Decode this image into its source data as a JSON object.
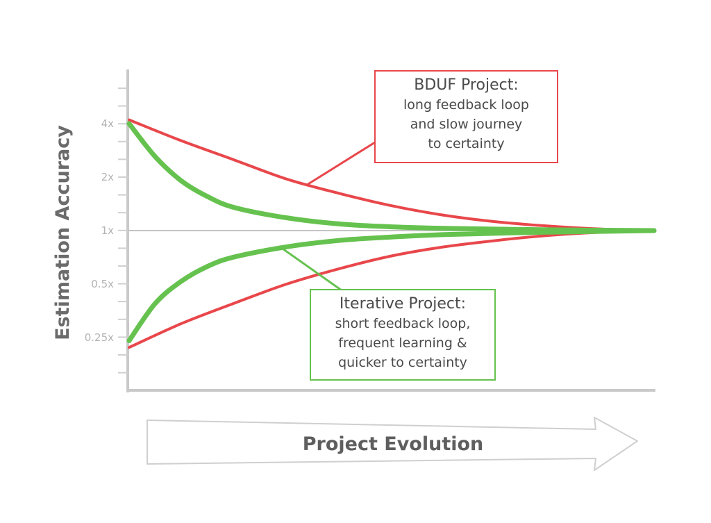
{
  "chart_data": {
    "type": "line",
    "y_axis_label": "Estimation Accuracy",
    "x_axis_label": "Project Evolution",
    "y_scale": "log2",
    "y_ticks": [
      "4x",
      "2x",
      "1x",
      "0.5x",
      "0.25x"
    ],
    "y_tick_values": [
      4,
      2,
      1,
      0.5,
      0.25
    ],
    "x_range": [
      0,
      1
    ],
    "reference_line_y": 1,
    "series": [
      {
        "group": "bduf",
        "color": "#e8474b",
        "points": [
          [
            0,
            4.2
          ],
          [
            0.1,
            3.2
          ],
          [
            0.2,
            2.5
          ],
          [
            0.3,
            1.95
          ],
          [
            0.4,
            1.62
          ],
          [
            0.5,
            1.38
          ],
          [
            0.6,
            1.22
          ],
          [
            0.7,
            1.12
          ],
          [
            0.8,
            1.06
          ],
          [
            0.9,
            1.02
          ],
          [
            1.0,
            1.0
          ]
        ]
      },
      {
        "group": "bduf",
        "color": "#e8474b",
        "points": [
          [
            0,
            0.22
          ],
          [
            0.1,
            0.3
          ],
          [
            0.2,
            0.39
          ],
          [
            0.3,
            0.5
          ],
          [
            0.4,
            0.61
          ],
          [
            0.5,
            0.72
          ],
          [
            0.6,
            0.81
          ],
          [
            0.7,
            0.88
          ],
          [
            0.8,
            0.94
          ],
          [
            0.9,
            0.98
          ],
          [
            1.0,
            1.0
          ]
        ]
      },
      {
        "group": "iterative",
        "color": "#66c24f",
        "points": [
          [
            0,
            4.0
          ],
          [
            0.05,
            2.6
          ],
          [
            0.1,
            1.9
          ],
          [
            0.15,
            1.55
          ],
          [
            0.2,
            1.35
          ],
          [
            0.3,
            1.18
          ],
          [
            0.4,
            1.09
          ],
          [
            0.5,
            1.05
          ],
          [
            0.6,
            1.03
          ],
          [
            0.8,
            1.01
          ],
          [
            1.0,
            1.0
          ]
        ]
      },
      {
        "group": "iterative",
        "color": "#66c24f",
        "points": [
          [
            0,
            0.24
          ],
          [
            0.05,
            0.39
          ],
          [
            0.1,
            0.52
          ],
          [
            0.15,
            0.63
          ],
          [
            0.2,
            0.71
          ],
          [
            0.3,
            0.81
          ],
          [
            0.4,
            0.88
          ],
          [
            0.5,
            0.92
          ],
          [
            0.6,
            0.95
          ],
          [
            0.8,
            0.98
          ],
          [
            1.0,
            1.0
          ]
        ]
      }
    ],
    "annotations": {
      "bduf": {
        "title": "BDUF Project:",
        "lines": [
          "long feedback loop",
          "and slow journey",
          "to certainty"
        ],
        "color": "#e8474b",
        "pointer_target": [
          0.34,
          1.82
        ]
      },
      "iterative": {
        "title": "Iterative Project:",
        "lines": [
          "short feedback loop,",
          "frequent learning &",
          "quicker to certainty"
        ],
        "color": "#66c24f",
        "pointer_target": [
          0.29,
          0.8
        ]
      }
    },
    "grid": false,
    "legend": "none"
  }
}
